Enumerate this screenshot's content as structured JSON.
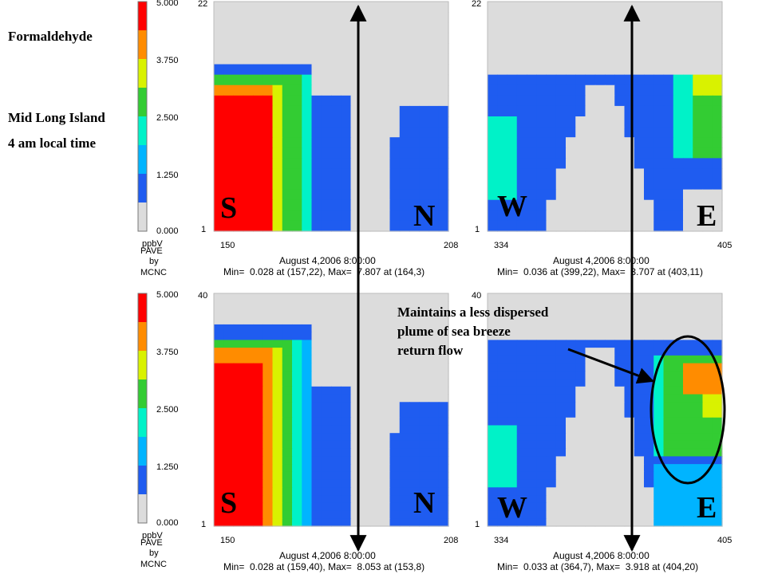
{
  "title_block": {
    "species": "Formaldehyde",
    "location": "Mid Long Island",
    "time": "4 am local time"
  },
  "colorbar": {
    "ticks": [
      "5.000",
      "3.750",
      "2.500",
      "1.250",
      "0.000"
    ],
    "unit": "ppbV",
    "credit": [
      "PAVE",
      "by",
      "MCNC"
    ],
    "bins": [
      {
        "level": 7,
        "color": "#ff0000"
      },
      {
        "level": 6,
        "color": "#ff8c00"
      },
      {
        "level": 5,
        "color": "#d9f200"
      },
      {
        "level": 4,
        "color": "#33cc33"
      },
      {
        "level": 3,
        "color": "#00f2c8"
      },
      {
        "level": 2,
        "color": "#00b4ff"
      },
      {
        "level": 1,
        "color": "#1f5cf0"
      },
      {
        "level": 0,
        "color": "#dcdcdc"
      }
    ]
  },
  "annotation": {
    "text": [
      "Maintains a less dispersed",
      "plume of sea breeze",
      "return flow"
    ]
  },
  "chart_data": [
    {
      "type": "heatmap",
      "panel": "top-left",
      "x_range": [
        150,
        208
      ],
      "y_range": [
        1,
        22
      ],
      "xticks": [
        "150",
        "208"
      ],
      "yticks": [
        "22",
        "1"
      ],
      "dir_left": "S",
      "dir_right": "N",
      "caption": "August 4,2006 8:00:00",
      "minmax": "Min=  0.028 at (157,22), Max=  7.807 at (164,3)",
      "value_range": [
        0.028,
        7.807
      ]
    },
    {
      "type": "heatmap",
      "panel": "top-right",
      "x_range": [
        334,
        405
      ],
      "y_range": [
        1,
        22
      ],
      "xticks": [
        "334",
        "405"
      ],
      "yticks": [
        "22",
        "1"
      ],
      "dir_left": "W",
      "dir_right": "E",
      "caption": "August 4,2006 8:00:00",
      "minmax": "Min=  0.036 at (399,22), Max=  3.707 at (403,11)",
      "value_range": [
        0.036,
        3.707
      ]
    },
    {
      "type": "heatmap",
      "panel": "bottom-left",
      "x_range": [
        150,
        208
      ],
      "y_range": [
        1,
        40
      ],
      "xticks": [
        "150",
        "208"
      ],
      "yticks": [
        "40",
        "1"
      ],
      "dir_left": "S",
      "dir_right": "N",
      "caption": "August 4,2006 8:00:00",
      "minmax": "Min=  0.028 at (159,40), Max=  8.053 at (153,8)",
      "value_range": [
        0.028,
        8.053
      ]
    },
    {
      "type": "heatmap",
      "panel": "bottom-right",
      "x_range": [
        334,
        405
      ],
      "y_range": [
        1,
        40
      ],
      "xticks": [
        "334",
        "405"
      ],
      "yticks": [
        "40",
        "1"
      ],
      "dir_left": "W",
      "dir_right": "E",
      "caption": "August 4,2006 8:00:00",
      "minmax": "Min=  0.033 at (364,7), Max=  3.918 at (404,20)",
      "value_range": [
        0.033,
        3.918
      ]
    }
  ]
}
